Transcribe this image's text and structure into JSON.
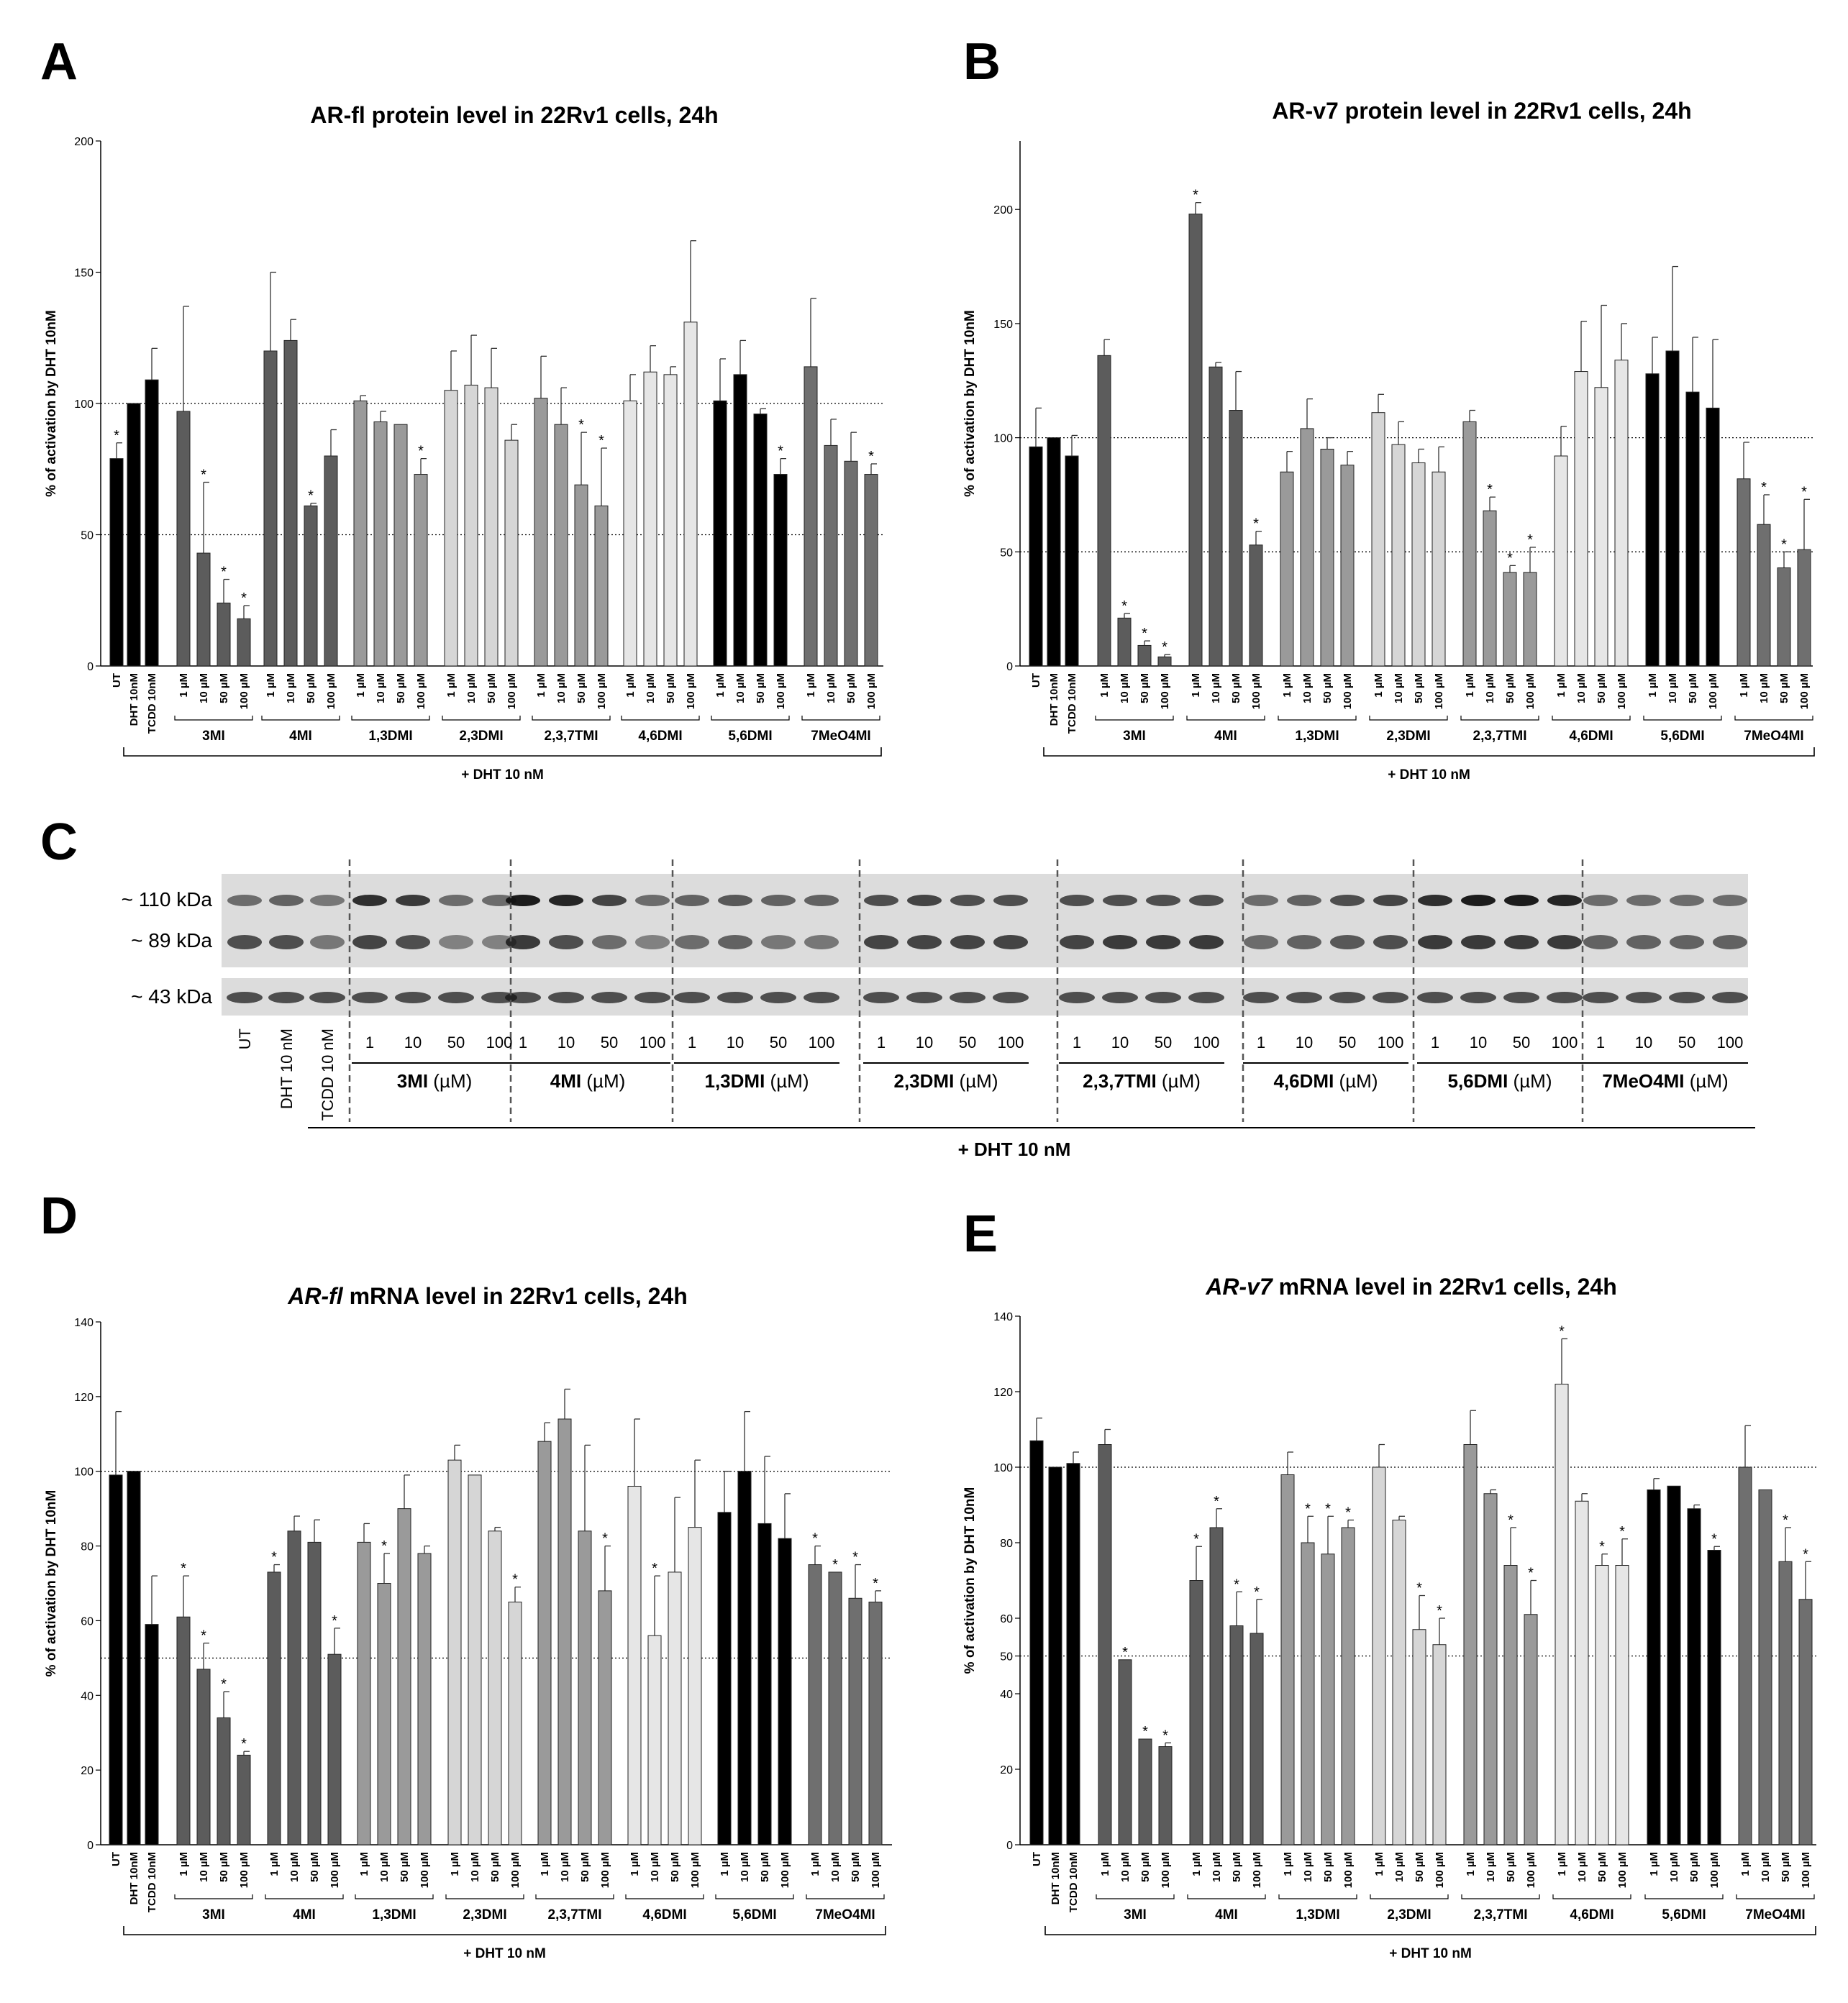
{
  "panels": [
    {
      "letter": "A"
    },
    {
      "letter": "B"
    },
    {
      "letter": "C"
    },
    {
      "letter": "D"
    },
    {
      "letter": "E"
    }
  ],
  "colors": {
    "ctrl": "#000000",
    "3MI": "#5c5c5c",
    "4MI": "#5c5c5c",
    "1,3DMI": "#9a9a9a",
    "2,3DMI": "#d6d6d6",
    "2,3,7TMI": "#9a9a9a",
    "4,6DMI": "#e6e6e6",
    "5,6DMI": "#000000",
    "7MeO4MI": "#6f6f6f"
  },
  "chart_data": [
    {
      "id": "A",
      "type": "bar",
      "title": "AR-fl protein level in 22Rv1 cells, 24h",
      "ylabel": "% of activation by DHT 10nM",
      "ylim": [
        0,
        200
      ],
      "yticks": [
        0,
        50,
        100,
        150,
        200
      ],
      "refs": [
        100,
        50
      ],
      "controls": [
        {
          "label": "UT",
          "value": 79,
          "err": 6,
          "star": true
        },
        {
          "label": "DHT 10nM",
          "value": 100,
          "err": 0,
          "star": false
        },
        {
          "label": "TCDD 10nM",
          "value": 109,
          "err": 12,
          "star": false
        }
      ],
      "doses": [
        "1 µM",
        "10 µM",
        "50 µM",
        "100 µM"
      ],
      "groups": [
        {
          "name": "3MI",
          "values": [
            97,
            43,
            24,
            18
          ],
          "errs": [
            40,
            27,
            9,
            5
          ],
          "stars": [
            false,
            true,
            true,
            true
          ]
        },
        {
          "name": "4MI",
          "values": [
            120,
            124,
            61,
            80
          ],
          "errs": [
            30,
            8,
            1,
            10
          ],
          "stars": [
            false,
            false,
            true,
            false
          ]
        },
        {
          "name": "1,3DMI",
          "values": [
            101,
            93,
            92,
            73
          ],
          "errs": [
            2,
            4,
            0,
            6
          ],
          "stars": [
            false,
            false,
            false,
            true
          ]
        },
        {
          "name": "2,3DMI",
          "values": [
            105,
            107,
            106,
            86
          ],
          "errs": [
            15,
            19,
            15,
            6
          ],
          "stars": [
            false,
            false,
            false,
            false
          ]
        },
        {
          "name": "2,3,7TMI",
          "values": [
            102,
            92,
            69,
            61
          ],
          "errs": [
            16,
            14,
            20,
            22
          ],
          "stars": [
            false,
            false,
            true,
            true
          ]
        },
        {
          "name": "4,6DMI",
          "values": [
            101,
            112,
            111,
            131
          ],
          "errs": [
            10,
            10,
            3,
            31
          ],
          "stars": [
            false,
            false,
            false,
            false
          ]
        },
        {
          "name": "5,6DMI",
          "values": [
            101,
            111,
            96,
            73
          ],
          "errs": [
            16,
            13,
            2,
            6
          ],
          "stars": [
            false,
            false,
            false,
            true
          ]
        },
        {
          "name": "7MeO4MI",
          "values": [
            114,
            84,
            78,
            73
          ],
          "errs": [
            26,
            10,
            11,
            4
          ],
          "stars": [
            false,
            false,
            false,
            true
          ]
        }
      ],
      "bracket": "+ DHT 10 nM"
    },
    {
      "id": "B",
      "type": "bar",
      "title": "AR-v7 protein level in 22Rv1 cells, 24h",
      "ylabel": "% of activation by DHT 10nM",
      "ylim": [
        0,
        230
      ],
      "yticks": [
        0,
        50,
        100,
        150,
        200
      ],
      "refs": [
        100,
        50
      ],
      "controls": [
        {
          "label": "UT",
          "value": 96,
          "err": 17,
          "star": false
        },
        {
          "label": "DHT 10nM",
          "value": 100,
          "err": 0,
          "star": false
        },
        {
          "label": "TCDD 10nM",
          "value": 92,
          "err": 9,
          "star": false
        }
      ],
      "doses": [
        "1 µM",
        "10 µM",
        "50 µM",
        "100 µM"
      ],
      "groups": [
        {
          "name": "3MI",
          "values": [
            136,
            21,
            9,
            4
          ],
          "errs": [
            7,
            2,
            2,
            1
          ],
          "stars": [
            false,
            true,
            true,
            true
          ]
        },
        {
          "name": "4MI",
          "values": [
            198,
            131,
            112,
            53
          ],
          "errs": [
            5,
            2,
            17,
            6
          ],
          "stars": [
            true,
            false,
            false,
            true
          ]
        },
        {
          "name": "1,3DMI",
          "values": [
            85,
            104,
            95,
            88
          ],
          "errs": [
            9,
            13,
            5,
            6
          ],
          "stars": [
            false,
            false,
            false,
            false
          ]
        },
        {
          "name": "2,3DMI",
          "values": [
            111,
            97,
            89,
            85
          ],
          "errs": [
            8,
            10,
            6,
            11
          ],
          "stars": [
            false,
            false,
            false,
            false
          ]
        },
        {
          "name": "2,3,7TMI",
          "values": [
            107,
            68,
            41,
            41
          ],
          "errs": [
            5,
            6,
            3,
            11
          ],
          "stars": [
            false,
            true,
            true,
            true
          ]
        },
        {
          "name": "4,6DMI",
          "values": [
            92,
            129,
            122,
            134
          ],
          "errs": [
            13,
            22,
            36,
            16
          ],
          "stars": [
            false,
            false,
            false,
            false
          ]
        },
        {
          "name": "5,6DMI",
          "values": [
            128,
            138,
            120,
            113
          ],
          "errs": [
            16,
            37,
            24,
            30
          ],
          "stars": [
            false,
            false,
            false,
            false
          ]
        },
        {
          "name": "7MeO4MI",
          "values": [
            82,
            62,
            43,
            51
          ],
          "errs": [
            16,
            13,
            7,
            22
          ],
          "stars": [
            false,
            true,
            true,
            true
          ]
        }
      ],
      "bracket": "+ DHT 10 nM"
    },
    {
      "id": "D",
      "type": "bar",
      "title_italic": "AR-fl",
      "title_rest": " mRNA level in 22Rv1 cells, 24h",
      "ylabel": "% of activation by DHT 10nM",
      "ylim": [
        0,
        140
      ],
      "yticks": [
        0,
        20,
        40,
        60,
        80,
        100,
        120,
        140
      ],
      "refs": [
        100,
        50
      ],
      "controls": [
        {
          "label": "UT",
          "value": 99,
          "err": 17,
          "star": false
        },
        {
          "label": "DHT 10nM",
          "value": 100,
          "err": 0,
          "star": false
        },
        {
          "label": "TCDD 10nM",
          "value": 59,
          "err": 13,
          "star": false
        }
      ],
      "doses": [
        "1 µM",
        "10 µM",
        "50 µM",
        "100 µM"
      ],
      "groups": [
        {
          "name": "3MI",
          "values": [
            61,
            47,
            34,
            24
          ],
          "errs": [
            11,
            7,
            7,
            1
          ],
          "stars": [
            true,
            true,
            true,
            true
          ]
        },
        {
          "name": "4MI",
          "values": [
            73,
            84,
            81,
            51
          ],
          "errs": [
            2,
            4,
            6,
            7
          ],
          "stars": [
            true,
            false,
            false,
            true
          ]
        },
        {
          "name": "1,3DMI",
          "values": [
            81,
            70,
            90,
            78
          ],
          "errs": [
            5,
            8,
            9,
            2
          ],
          "stars": [
            false,
            true,
            false,
            false
          ]
        },
        {
          "name": "2,3DMI",
          "values": [
            103,
            99,
            84,
            65
          ],
          "errs": [
            4,
            0,
            1,
            4
          ],
          "stars": [
            false,
            false,
            false,
            true
          ]
        },
        {
          "name": "2,3,7TMI",
          "values": [
            108,
            114,
            84,
            68
          ],
          "errs": [
            5,
            8,
            23,
            12
          ],
          "stars": [
            false,
            false,
            false,
            true
          ]
        },
        {
          "name": "4,6DMI",
          "values": [
            96,
            56,
            73,
            85
          ],
          "errs": [
            18,
            16,
            20,
            18
          ],
          "stars": [
            false,
            true,
            false,
            false
          ]
        },
        {
          "name": "5,6DMI",
          "values": [
            89,
            100,
            86,
            82
          ],
          "errs": [
            11,
            16,
            18,
            12
          ],
          "stars": [
            false,
            false,
            false,
            false
          ]
        },
        {
          "name": "7MeO4MI",
          "values": [
            75,
            73,
            66,
            65
          ],
          "errs": [
            5,
            0,
            9,
            3
          ],
          "stars": [
            true,
            true,
            true,
            true
          ]
        }
      ],
      "bracket": "+ DHT 10 nM"
    },
    {
      "id": "E",
      "type": "bar",
      "title_italic": "AR-v7",
      "title_rest": " mRNA level in 22Rv1 cells, 24h",
      "ylabel": "% of activation by DHT 10nM",
      "ylim": [
        0,
        140
      ],
      "yticks": [
        0,
        20,
        40,
        50,
        60,
        80,
        100,
        120,
        140
      ],
      "refs": [
        100,
        50
      ],
      "controls": [
        {
          "label": "UT",
          "value": 107,
          "err": 6,
          "star": false
        },
        {
          "label": "DHT 10nM",
          "value": 100,
          "err": 0,
          "star": false
        },
        {
          "label": "TCDD 10nM",
          "value": 101,
          "err": 3,
          "star": false
        }
      ],
      "doses": [
        "1 µM",
        "10 µM",
        "50 µM",
        "100 µM"
      ],
      "groups": [
        {
          "name": "3MI",
          "values": [
            106,
            49,
            28,
            26
          ],
          "errs": [
            4,
            0,
            0,
            1
          ],
          "stars": [
            false,
            true,
            true,
            true
          ]
        },
        {
          "name": "4MI",
          "values": [
            70,
            84,
            58,
            56
          ],
          "errs": [
            9,
            5,
            9,
            9
          ],
          "stars": [
            true,
            true,
            true,
            true
          ]
        },
        {
          "name": "1,3DMI",
          "values": [
            98,
            80,
            77,
            84
          ],
          "errs": [
            6,
            7,
            10,
            2
          ],
          "stars": [
            false,
            true,
            true,
            true
          ]
        },
        {
          "name": "2,3DMI",
          "values": [
            100,
            86,
            57,
            53
          ],
          "errs": [
            6,
            1,
            9,
            7
          ],
          "stars": [
            false,
            false,
            true,
            true
          ]
        },
        {
          "name": "2,3,7TMI",
          "values": [
            106,
            93,
            74,
            61
          ],
          "errs": [
            9,
            1,
            10,
            9
          ],
          "stars": [
            false,
            false,
            true,
            true
          ]
        },
        {
          "name": "4,6DMI",
          "values": [
            122,
            91,
            74,
            74
          ],
          "errs": [
            12,
            2,
            3,
            7
          ],
          "stars": [
            true,
            false,
            true,
            true
          ]
        },
        {
          "name": "5,6DMI",
          "values": [
            94,
            95,
            89,
            78
          ],
          "errs": [
            3,
            0,
            1,
            1
          ],
          "stars": [
            false,
            false,
            false,
            true
          ]
        },
        {
          "name": "7MeO4MI",
          "values": [
            100,
            94,
            75,
            65
          ],
          "errs": [
            11,
            0,
            9,
            10
          ],
          "stars": [
            false,
            false,
            true,
            true
          ]
        }
      ],
      "bracket": "+ DHT 10 nM"
    }
  ],
  "western": {
    "markers": [
      "~ 110 kDa",
      "~ 89 kDa",
      "~ 43 kDa"
    ],
    "control_lanes": [
      "UT",
      "DHT 10 nM",
      "TCDD 10 nM"
    ],
    "doses": [
      "1",
      "10",
      "50",
      "100"
    ],
    "groups": [
      {
        "name": "3MI",
        "unit": "(µM)"
      },
      {
        "name": "4MI",
        "unit": "(µM)"
      },
      {
        "name": "1,3DMI",
        "unit": "(µM)"
      },
      {
        "name": "2,3DMI",
        "unit": "(µM)"
      },
      {
        "name": "2,3,7TMI",
        "unit": "(µM)"
      },
      {
        "name": "4,6DMI",
        "unit": "(µM)"
      },
      {
        "name": "5,6DMI",
        "unit": "(µM)"
      },
      {
        "name": "7MeO4MI",
        "unit": "(µM)"
      }
    ],
    "bracket": "+ DHT  10 nM"
  }
}
